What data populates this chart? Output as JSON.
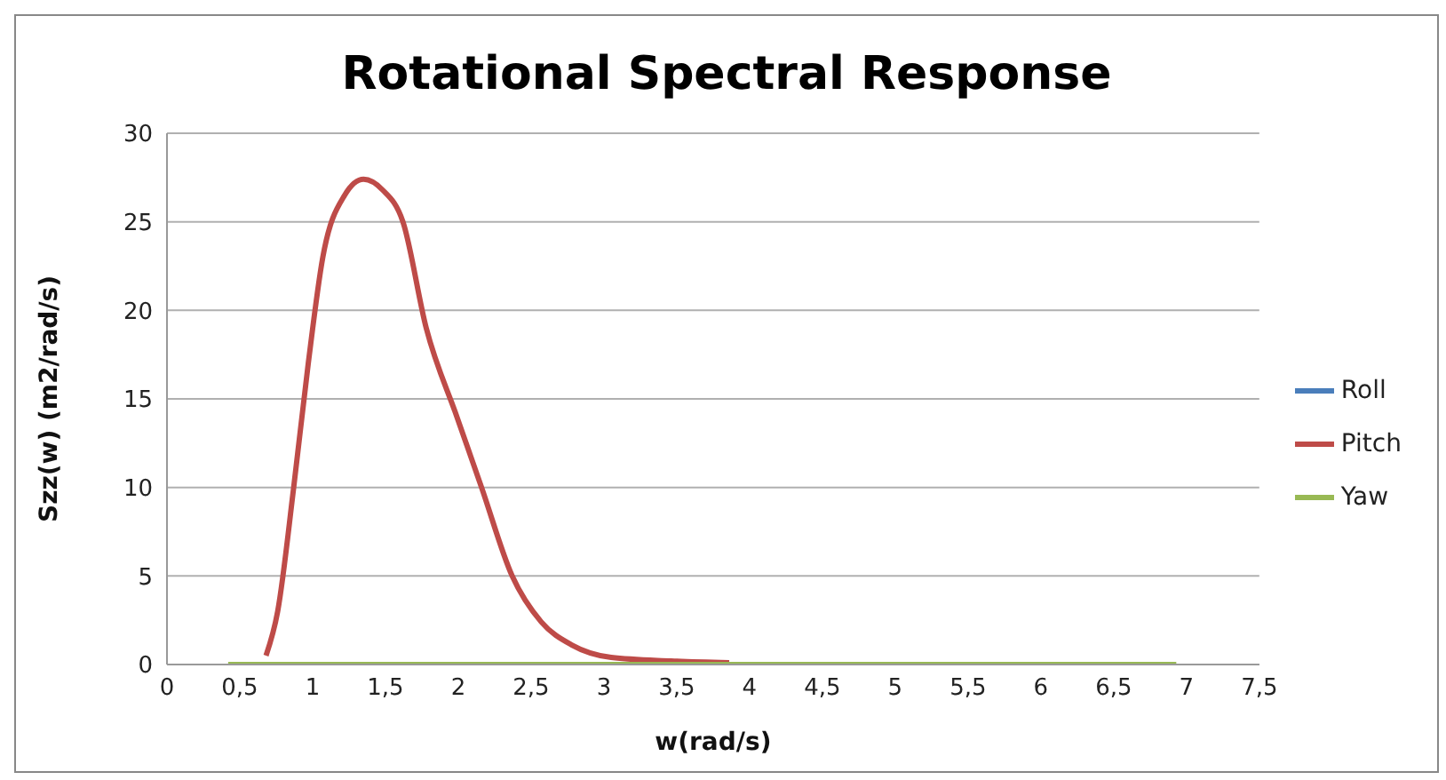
{
  "chart_data": {
    "type": "line",
    "title": "Rotational Spectral Response",
    "xlabel": "w(rad/s)",
    "ylabel": "Szz(w) (m2/rad/s)",
    "xlim": [
      0,
      7.5
    ],
    "ylim": [
      0,
      30
    ],
    "xticks": [
      0,
      {
        "value": 0.5,
        "label": "0,5"
      },
      1,
      {
        "value": 1.5,
        "label": "1,5"
      },
      2,
      {
        "value": 2.5,
        "label": "2,5"
      },
      3,
      {
        "value": 3.5,
        "label": "3,5"
      },
      4,
      {
        "value": 4.5,
        "label": "4,5"
      },
      5,
      {
        "value": 5.5,
        "label": "5,5"
      },
      6,
      {
        "value": 6.5,
        "label": "6,5"
      },
      7,
      {
        "value": 7.5,
        "label": "7,5"
      }
    ],
    "yticks": [
      0,
      5,
      10,
      15,
      20,
      25,
      30
    ],
    "grid": "y",
    "legend": "right",
    "marker": "none",
    "line_style": "solid",
    "series": [
      {
        "name": "Roll",
        "color": "#4a7ebb"
      },
      {
        "name": "Pitch",
        "color": "#be4b48",
        "x": [
          0.68,
          0.76,
          0.87,
          0.97,
          1.07,
          1.22,
          1.35,
          1.48,
          1.62,
          1.78,
          1.99,
          2.16,
          2.37,
          2.57,
          2.78,
          3.05,
          3.46,
          3.86
        ],
        "values": [
          0.5,
          3,
          10,
          17,
          23,
          26.5,
          27.4,
          26.8,
          25,
          19,
          14,
          10,
          5,
          2.4,
          1.1,
          0.4,
          0.2,
          0.1
        ]
      },
      {
        "name": "Yaw",
        "color": "#98b954",
        "x": [
          0.42,
          1,
          2,
          3,
          4,
          5,
          6,
          6.93
        ],
        "values": [
          0,
          0,
          0,
          0,
          0,
          0,
          0,
          0
        ]
      }
    ]
  }
}
